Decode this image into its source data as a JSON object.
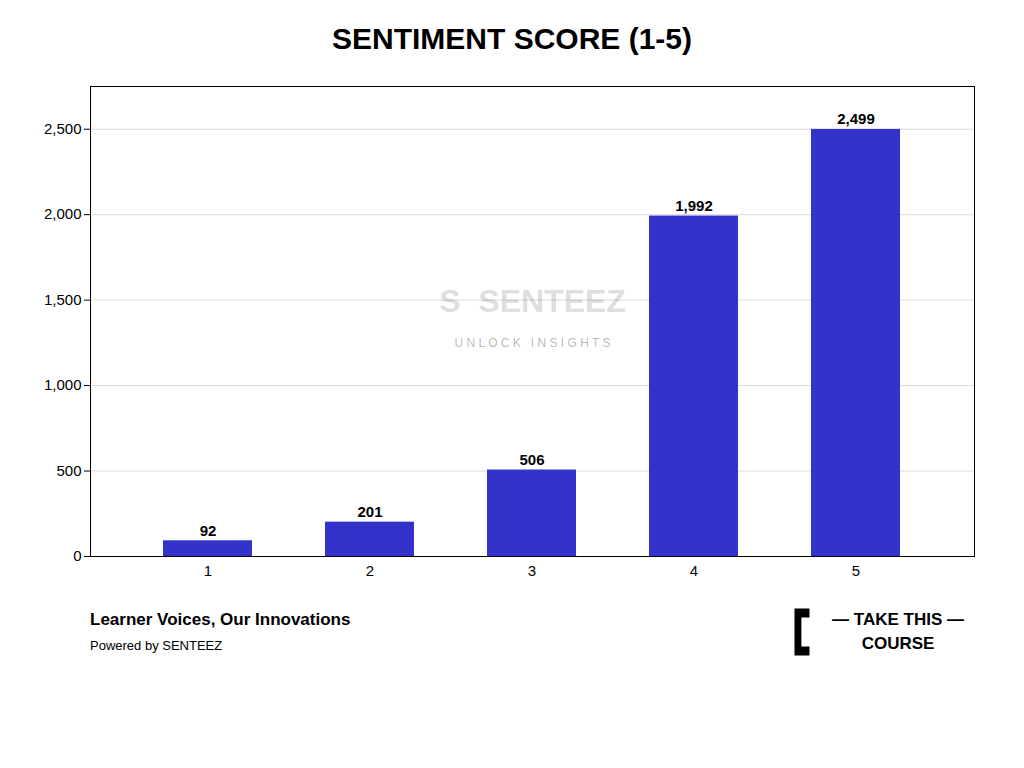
{
  "chart_data": {
    "type": "bar",
    "title": "SENTIMENT SCORE (1-5)",
    "categories": [
      1,
      2,
      3,
      4,
      5
    ],
    "values": [
      92,
      201,
      506,
      1992,
      2499
    ],
    "value_labels": [
      "92",
      "201",
      "506",
      "1,992",
      "2,499"
    ],
    "color": "#3333CC",
    "ylim": [
      0,
      2750
    ],
    "yticks": [
      0,
      500,
      {
        "value": 1000,
        "label": "1,000"
      },
      {
        "value": 1500,
        "label": "1,500"
      },
      {
        "value": 2000,
        "label": "2,000"
      },
      {
        "value": 2500,
        "label": "2,500"
      }
    ],
    "grid": true,
    "data_labels": true,
    "annotations": [
      "S  SENTEEZ",
      "U N L O C K   I N S I G H T S",
      "Learner Voices, Our Innovations",
      "Powered by SENTEEZ",
      "— TAKE THIS —",
      "COURSE"
    ]
  }
}
